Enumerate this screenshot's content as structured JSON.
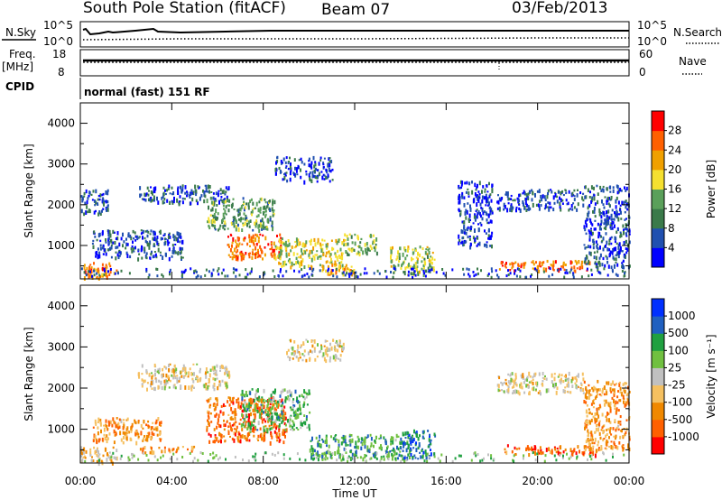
{
  "header": {
    "station": "South Pole Station (fitACF)",
    "beam": "Beam 07",
    "date": "03/Feb/2013"
  },
  "top_panels": {
    "nsky_label": "N.Sky",
    "nsky_ticks": [
      "10^5",
      "10^0"
    ],
    "nsearch_label": "N.Search",
    "nsearch_ticks": [
      "10^5",
      "10^0"
    ],
    "freq_label": "Freq.",
    "freq_unit": "[MHz]",
    "freq_ticks": [
      "18",
      "8"
    ],
    "nave_label": "Nave",
    "nave_ticks": [
      "60",
      "0"
    ],
    "cpid_label": "CPID",
    "cpid_text": "normal (fast) 151 RF"
  },
  "colors": {
    "power_scale": [
      "#0000ff",
      "#2050b0",
      "#3a7a4a",
      "#5aa05a",
      "#f5e030",
      "#f0a000",
      "#ff6000",
      "#ff0000"
    ],
    "velocity_scale": [
      "#ff0000",
      "#ff6000",
      "#f08800",
      "#f5c060",
      "#c0c0c0",
      "#70c040",
      "#20a040",
      "#2060c0",
      "#0030ff"
    ]
  },
  "chart_data": [
    {
      "type": "heatmap",
      "name": "power",
      "ylabel": "Slant Range [km]",
      "xlabel": "",
      "x_ticks": [
        "00:00",
        "04:00",
        "08:00",
        "12:00",
        "16:00",
        "20:00",
        "00:00"
      ],
      "y_ticks": [
        1000,
        2000,
        3000,
        4000
      ],
      "xlim": [
        0,
        24
      ],
      "ylim": [
        180,
        4500
      ],
      "colorbar": {
        "label": "Power [dB]",
        "ticks": [
          4,
          8,
          12,
          16,
          20,
          24,
          28
        ],
        "range": [
          0,
          32
        ]
      },
      "regions": [
        {
          "t0": 0.0,
          "t1": 1.6,
          "r0": 200,
          "r1": 600,
          "level": 24
        },
        {
          "t0": 0.0,
          "t1": 1.2,
          "r0": 1800,
          "r1": 2400,
          "level": 6
        },
        {
          "t0": 0.5,
          "t1": 4.5,
          "r0": 700,
          "r1": 1400,
          "level": 6
        },
        {
          "t0": 2.5,
          "t1": 6.5,
          "r0": 2050,
          "r1": 2500,
          "level": 6
        },
        {
          "t0": 5.5,
          "t1": 8.5,
          "r0": 1400,
          "r1": 2200,
          "level": 12
        },
        {
          "t0": 6.4,
          "t1": 8.8,
          "r0": 700,
          "r1": 1300,
          "level": 26
        },
        {
          "t0": 8.5,
          "t1": 11.5,
          "r0": 500,
          "r1": 1200,
          "level": 18
        },
        {
          "t0": 8.5,
          "t1": 11.0,
          "r0": 2600,
          "r1": 3200,
          "level": 5
        },
        {
          "t0": 10.5,
          "t1": 12.0,
          "r0": 300,
          "r1": 600,
          "level": 22
        },
        {
          "t0": 11.5,
          "t1": 13.0,
          "r0": 800,
          "r1": 1300,
          "level": 14
        },
        {
          "t0": 13.5,
          "t1": 15.5,
          "r0": 300,
          "r1": 1000,
          "level": 16
        },
        {
          "t0": 16.5,
          "t1": 18.0,
          "r0": 1000,
          "r1": 2600,
          "level": 5
        },
        {
          "t0": 18.2,
          "t1": 22.0,
          "r0": 1900,
          "r1": 2400,
          "level": 6
        },
        {
          "t0": 18.3,
          "t1": 22.3,
          "r0": 400,
          "r1": 650,
          "level": 25
        },
        {
          "t0": 22.0,
          "t1": 24.0,
          "r0": 500,
          "r1": 2500,
          "level": 6
        }
      ]
    },
    {
      "type": "heatmap",
      "name": "velocity",
      "ylabel": "Slant Range [km]",
      "xlabel": "Time UT",
      "x_ticks": [
        "00:00",
        "04:00",
        "08:00",
        "12:00",
        "16:00",
        "20:00",
        "00:00"
      ],
      "y_ticks": [
        1000,
        2000,
        3000,
        4000
      ],
      "xlim": [
        0,
        24
      ],
      "ylim": [
        180,
        4500
      ],
      "colorbar": {
        "label": "Velocity [m s⁻¹]",
        "ticks": [
          1000,
          500,
          100,
          25,
          -25,
          -100,
          -500,
          -1000
        ]
      },
      "regions": [
        {
          "t0": 0.0,
          "t1": 1.6,
          "r0": 200,
          "r1": 600,
          "level": 0.4
        },
        {
          "t0": 0.5,
          "t1": 3.5,
          "r0": 700,
          "r1": 1300,
          "level": 0.3
        },
        {
          "t0": 2.5,
          "t1": 6.5,
          "r0": 2000,
          "r1": 2600,
          "level": 0.45
        },
        {
          "t0": 2.5,
          "t1": 5.0,
          "r0": 450,
          "r1": 600,
          "level": 0.3
        },
        {
          "t0": 5.5,
          "t1": 9.0,
          "r0": 700,
          "r1": 1800,
          "level": 0.2
        },
        {
          "t0": 7.0,
          "t1": 10.0,
          "r0": 1000,
          "r1": 2000,
          "level": 0.65
        },
        {
          "t0": 9.0,
          "t1": 11.5,
          "r0": 2700,
          "r1": 3200,
          "level": 0.45
        },
        {
          "t0": 10.0,
          "t1": 14.5,
          "r0": 300,
          "r1": 900,
          "level": 0.7
        },
        {
          "t0": 14.0,
          "t1": 15.5,
          "r0": 300,
          "r1": 1000,
          "level": 0.8
        },
        {
          "t0": 18.2,
          "t1": 22.0,
          "r0": 1900,
          "r1": 2400,
          "level": 0.45
        },
        {
          "t0": 18.5,
          "t1": 22.5,
          "r0": 400,
          "r1": 650,
          "level": 0.2
        },
        {
          "t0": 22.0,
          "t1": 24.0,
          "r0": 500,
          "r1": 2200,
          "level": 0.3
        }
      ]
    }
  ]
}
